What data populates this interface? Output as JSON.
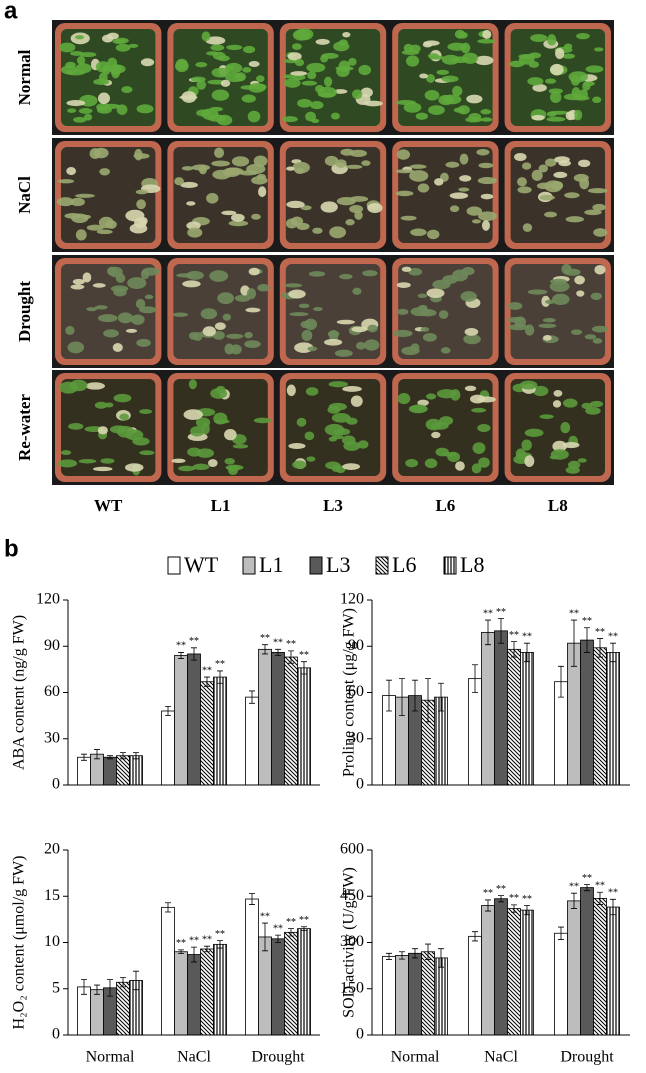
{
  "panel_a": {
    "label": "a",
    "rows": [
      "Normal",
      "NaCl",
      "Drought",
      "Re-water"
    ],
    "columns": [
      "WT",
      "L1",
      "L3",
      "L6",
      "L8"
    ]
  },
  "panel_b": {
    "label": "b"
  },
  "chart_data": [
    {
      "type": "bar",
      "y_label": "ABA content (ng/g FW)",
      "categories": [
        null,
        null,
        null
      ],
      "ylim": [
        0,
        120
      ],
      "yticks": [
        0,
        30,
        60,
        90,
        120
      ],
      "series": [
        {
          "name": "WT",
          "color": "#ffffff",
          "values": [
            18,
            48,
            57
          ],
          "errors": [
            2,
            3,
            4
          ],
          "stars": [
            null,
            null,
            null
          ]
        },
        {
          "name": "L1",
          "color": "#bdbdbd",
          "values": [
            20,
            84,
            88
          ],
          "errors": [
            3,
            2,
            3
          ],
          "stars": [
            null,
            "**",
            "**"
          ]
        },
        {
          "name": "L3",
          "color": "#595959",
          "values": [
            18,
            85,
            86
          ],
          "errors": [
            1,
            4,
            2
          ],
          "stars": [
            null,
            "**",
            "**"
          ]
        },
        {
          "name": "L6",
          "color": "hatch-diagonal",
          "values": [
            19,
            67,
            83
          ],
          "errors": [
            2,
            3,
            4
          ],
          "stars": [
            null,
            "**",
            "**"
          ]
        },
        {
          "name": "L8",
          "color": "hatch-vertical",
          "values": [
            19,
            70,
            76
          ],
          "errors": [
            2,
            4,
            4
          ],
          "stars": [
            null,
            "**",
            "**"
          ]
        }
      ]
    },
    {
      "type": "bar",
      "y_label": "Proline content (μg/g FW)",
      "categories": [
        null,
        null,
        null
      ],
      "ylim": [
        0,
        120
      ],
      "yticks": [
        0,
        30,
        60,
        90,
        120
      ],
      "series": [
        {
          "color": "#ffffff",
          "values": [
            58,
            69,
            67
          ],
          "errors": [
            10,
            9,
            10
          ],
          "stars": [
            null,
            null,
            null
          ]
        },
        {
          "color": "#bdbdbd",
          "values": [
            57,
            99,
            92
          ],
          "errors": [
            12,
            8,
            15
          ],
          "stars": [
            null,
            "**",
            "**"
          ]
        },
        {
          "color": "#595959",
          "values": [
            58,
            100,
            94
          ],
          "errors": [
            10,
            8,
            8
          ],
          "stars": [
            null,
            "**",
            "**"
          ]
        },
        {
          "color": "hatch-diagonal",
          "values": [
            55,
            88,
            89
          ],
          "errors": [
            14,
            5,
            6
          ],
          "stars": [
            null,
            "**",
            "**"
          ]
        },
        {
          "color": "hatch-vertical",
          "values": [
            57,
            86,
            86
          ],
          "errors": [
            9,
            6,
            6
          ],
          "stars": [
            null,
            "**",
            "**"
          ]
        }
      ]
    },
    {
      "type": "bar",
      "y_label": "H₂O₂ content (μmol/g FW)",
      "categories": [
        "Normal",
        "NaCl",
        "Drought"
      ],
      "ylim": [
        0,
        20
      ],
      "yticks": [
        0,
        5,
        10,
        15,
        20
      ],
      "series": [
        {
          "color": "#ffffff",
          "values": [
            5.2,
            13.8,
            14.7
          ],
          "errors": [
            0.8,
            0.5,
            0.6
          ],
          "stars": [
            null,
            null,
            null
          ]
        },
        {
          "color": "#bdbdbd",
          "values": [
            4.9,
            9.0,
            10.6
          ],
          "errors": [
            0.5,
            0.2,
            1.5
          ],
          "stars": [
            null,
            "**",
            "**"
          ]
        },
        {
          "color": "#595959",
          "values": [
            5.1,
            8.7,
            10.4
          ],
          "errors": [
            0.9,
            0.8,
            0.4
          ],
          "stars": [
            null,
            "**",
            "**"
          ]
        },
        {
          "color": "hatch-diagonal",
          "values": [
            5.7,
            9.3,
            11.1
          ],
          "errors": [
            0.5,
            0.3,
            0.4
          ],
          "stars": [
            null,
            "**",
            "**"
          ]
        },
        {
          "color": "hatch-vertical",
          "values": [
            5.9,
            9.8,
            11.5
          ],
          "errors": [
            1.0,
            0.4,
            0.2
          ],
          "stars": [
            null,
            "**",
            "**"
          ]
        }
      ]
    },
    {
      "type": "bar",
      "y_label": "SOD activity (U/g FW)",
      "categories": [
        "Normal",
        "NaCl",
        "Drought"
      ],
      "ylim": [
        0,
        600
      ],
      "yticks": [
        0,
        150,
        300,
        450,
        600
      ],
      "series": [
        {
          "color": "#ffffff",
          "values": [
            255,
            320,
            330
          ],
          "errors": [
            10,
            15,
            20
          ],
          "stars": [
            null,
            null,
            null
          ]
        },
        {
          "color": "#bdbdbd",
          "values": [
            258,
            420,
            435
          ],
          "errors": [
            12,
            18,
            25
          ],
          "stars": [
            null,
            "**",
            "**"
          ]
        },
        {
          "color": "#595959",
          "values": [
            265,
            442,
            478
          ],
          "errors": [
            15,
            10,
            10
          ],
          "stars": [
            null,
            "**",
            "**"
          ]
        },
        {
          "color": "hatch-diagonal",
          "values": [
            270,
            410,
            443
          ],
          "errors": [
            25,
            12,
            20
          ],
          "stars": [
            null,
            "**",
            "**"
          ]
        },
        {
          "color": "hatch-vertical",
          "values": [
            250,
            405,
            415
          ],
          "errors": [
            30,
            15,
            25
          ],
          "stars": [
            null,
            "**",
            "**"
          ]
        }
      ]
    }
  ]
}
